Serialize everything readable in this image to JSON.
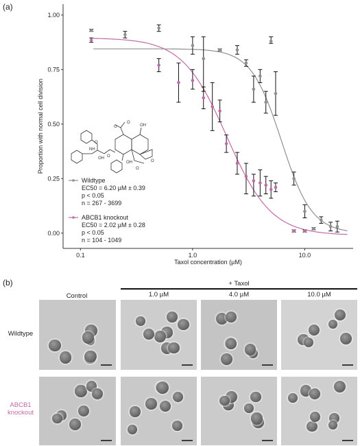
{
  "panel_a": {
    "label": "(a)"
  },
  "panel_b": {
    "label": "(b)",
    "taxol_header": "+ Taxol",
    "columns": [
      "Control",
      "1.0 µM",
      "4.0 µM",
      "10.0 µM"
    ],
    "rows": [
      {
        "label_lines": [
          "Wildtype"
        ],
        "color": "#222222"
      },
      {
        "label_lines": [
          "ABCB1",
          "knockout"
        ],
        "color": "#c06aa6"
      }
    ]
  },
  "chart_data": {
    "type": "scatter",
    "xlabel": "Taxol concentration (µM)",
    "ylabel": "Proportion with normal cell division",
    "x_scale": "log",
    "xlim": [
      0.07,
      27
    ],
    "ylim": [
      -0.07,
      1.05
    ],
    "x_ticks": [
      0.1,
      1.0,
      10.0
    ],
    "x_tick_labels": [
      "0.1",
      "1.0",
      "10.0"
    ],
    "y_ticks": [
      0,
      0.25,
      0.5,
      0.75,
      1.0
    ],
    "y_tick_labels": [
      "0.00",
      "0.25",
      "0.50",
      "0.75",
      "1.00"
    ],
    "grid": false,
    "legend_placement": "bottom-left",
    "series": [
      {
        "name": "Wildtype",
        "color": "#8f8f8f",
        "legend_lines": [
          "EC50 = 6.20 µM ± 0.39",
          "p < 0.05",
          "n = 267 - 3699"
        ],
        "fit": {
          "top": 0.845,
          "bottom": 0.0,
          "ec50": 6.2,
          "hill": 3.2
        },
        "points": [
          {
            "x": 0.125,
            "y": 0.93,
            "lo": 0.925,
            "hi": 0.935
          },
          {
            "x": 0.25,
            "y": 0.91,
            "lo": 0.895,
            "hi": 0.925
          },
          {
            "x": 0.5,
            "y": 0.94,
            "lo": 0.925,
            "hi": 0.955
          },
          {
            "x": 1.0,
            "y": 0.86,
            "lo": 0.82,
            "hi": 0.9
          },
          {
            "x": 1.25,
            "y": 0.8,
            "lo": 0.65,
            "hi": 0.9
          },
          {
            "x": 1.75,
            "y": 0.84,
            "lo": 0.835,
            "hi": 0.845
          },
          {
            "x": 2.5,
            "y": 0.84,
            "lo": 0.82,
            "hi": 0.86
          },
          {
            "x": 3.0,
            "y": 0.78,
            "lo": 0.765,
            "hi": 0.795
          },
          {
            "x": 3.5,
            "y": 0.66,
            "lo": 0.6,
            "hi": 0.72
          },
          {
            "x": 4.0,
            "y": 0.72,
            "lo": 0.69,
            "hi": 0.75
          },
          {
            "x": 4.5,
            "y": 0.6,
            "lo": 0.55,
            "hi": 0.65
          },
          {
            "x": 5.0,
            "y": 0.88,
            "lo": 0.87,
            "hi": 0.9
          },
          {
            "x": 5.5,
            "y": 0.64,
            "lo": 0.54,
            "hi": 0.74
          },
          {
            "x": 8.0,
            "y": 0.25,
            "lo": 0.22,
            "hi": 0.28
          },
          {
            "x": 10.0,
            "y": 0.1,
            "lo": 0.07,
            "hi": 0.13
          },
          {
            "x": 12.0,
            "y": 0.02,
            "lo": 0.015,
            "hi": 0.025
          },
          {
            "x": 14.0,
            "y": 0.06,
            "lo": 0.045,
            "hi": 0.075
          },
          {
            "x": 17.0,
            "y": 0.03,
            "lo": 0.01,
            "hi": 0.05
          },
          {
            "x": 19.5,
            "y": 0.03,
            "lo": 0.005,
            "hi": 0.055
          }
        ]
      },
      {
        "name": "ABCB1 knockout",
        "color": "#c06aa6",
        "legend_lines": [
          "EC50 = 2.02 µM ± 0.28",
          "p < 0.05",
          "n = 104 - 1049"
        ],
        "fit": {
          "top": 0.895,
          "bottom": -0.01,
          "ec50": 2.02,
          "hill": 2.2
        },
        "points": [
          {
            "x": 0.125,
            "y": 0.885,
            "lo": 0.875,
            "hi": 0.895
          },
          {
            "x": 0.5,
            "y": 0.77,
            "lo": 0.74,
            "hi": 0.8
          },
          {
            "x": 0.75,
            "y": 0.69,
            "lo": 0.6,
            "hi": 0.78
          },
          {
            "x": 1.0,
            "y": 0.7,
            "lo": 0.66,
            "hi": 0.75
          },
          {
            "x": 1.25,
            "y": 0.62,
            "lo": 0.57,
            "hi": 0.67
          },
          {
            "x": 1.5,
            "y": 0.58,
            "lo": 0.47,
            "hi": 0.69
          },
          {
            "x": 1.75,
            "y": 0.56,
            "lo": 0.51,
            "hi": 0.61
          },
          {
            "x": 2.0,
            "y": 0.41,
            "lo": 0.37,
            "hi": 0.45
          },
          {
            "x": 2.5,
            "y": 0.32,
            "lo": 0.27,
            "hi": 0.37
          },
          {
            "x": 3.0,
            "y": 0.26,
            "lo": 0.18,
            "hi": 0.32
          },
          {
            "x": 3.5,
            "y": 0.24,
            "lo": 0.17,
            "hi": 0.27
          },
          {
            "x": 4.0,
            "y": 0.23,
            "lo": 0.17,
            "hi": 0.29
          },
          {
            "x": 4.5,
            "y": 0.22,
            "lo": 0.18,
            "hi": 0.26
          },
          {
            "x": 5.0,
            "y": 0.2,
            "lo": 0.16,
            "hi": 0.24
          },
          {
            "x": 5.5,
            "y": 0.21,
            "lo": 0.19,
            "hi": 0.23
          },
          {
            "x": 8.0,
            "y": 0.01,
            "lo": 0.005,
            "hi": 0.015
          },
          {
            "x": 10.0,
            "y": 0.01,
            "lo": 0.005,
            "hi": 0.015
          }
        ]
      }
    ]
  }
}
